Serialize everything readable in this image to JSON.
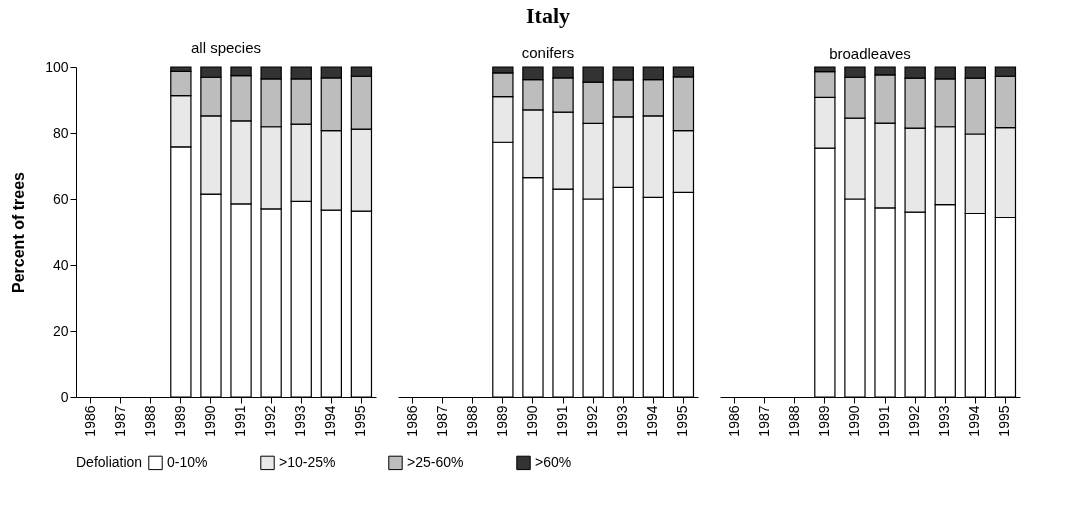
{
  "chart_data": [
    {
      "type": "bar",
      "subtitle": "all species",
      "ylabel": "Percent of trees",
      "legend_title": "Defoliation",
      "stacked": true,
      "legend": "bottom",
      "grid": false,
      "ylim": [
        0,
        100
      ],
      "yticks": [
        0,
        20,
        40,
        60,
        80,
        100
      ],
      "categories": [
        "1986",
        "1987",
        "1988",
        "1989",
        "1990",
        "1991",
        "1992",
        "1993",
        "1994",
        "1995"
      ],
      "series": [
        {
          "name": "0-10%",
          "color": "#ffffff",
          "values": [
            null,
            null,
            null,
            75.8,
            61.5,
            58.5,
            57,
            59.3,
            56.6,
            56.3
          ]
        },
        {
          "name": ">10-25%",
          "color": "#e8e8e8",
          "values": [
            null,
            null,
            null,
            15.5,
            23.7,
            25.2,
            24.9,
            23.4,
            24.1,
            24.9
          ]
        },
        {
          "name": ">25-60%",
          "color": "#bdbdbd",
          "values": [
            null,
            null,
            null,
            7.4,
            11.7,
            13.7,
            14.5,
            13.7,
            16,
            16
          ]
        },
        {
          "name": ">60%",
          "color": "#333333",
          "values": [
            null,
            null,
            null,
            1.3,
            3.1,
            2.6,
            3.6,
            3.6,
            3.3,
            2.8
          ]
        }
      ]
    },
    {
      "type": "bar",
      "title": "Italy",
      "subtitle": "conifers",
      "stacked": true,
      "tick_labels": "x",
      "ylim": [
        0,
        100
      ],
      "categories": [
        "1986",
        "1987",
        "1988",
        "1989",
        "1990",
        "1991",
        "1992",
        "1993",
        "1994",
        "1995"
      ],
      "series": [
        {
          "name": "0-10%",
          "color": "#ffffff",
          "values": [
            null,
            null,
            null,
            77.2,
            66.5,
            63,
            60,
            63.5,
            60.5,
            62
          ]
        },
        {
          "name": ">10-25%",
          "color": "#e8e8e8",
          "values": [
            null,
            null,
            null,
            13.8,
            20.5,
            23.3,
            22.9,
            21.4,
            24.7,
            18.7
          ]
        },
        {
          "name": ">25-60%",
          "color": "#bdbdbd",
          "values": [
            null,
            null,
            null,
            7.2,
            9.2,
            10.4,
            12.5,
            11.2,
            11,
            16.3
          ]
        },
        {
          "name": ">60%",
          "color": "#333333",
          "values": [
            null,
            null,
            null,
            1.8,
            3.8,
            3.3,
            4.6,
            3.9,
            3.8,
            3
          ]
        }
      ]
    },
    {
      "type": "bar",
      "subtitle": "broadleaves",
      "stacked": true,
      "tick_labels": "x",
      "ylim": [
        0,
        100
      ],
      "categories": [
        "1986",
        "1987",
        "1988",
        "1989",
        "1990",
        "1991",
        "1992",
        "1993",
        "1994",
        "1995"
      ],
      "series": [
        {
          "name": "0-10%",
          "color": "#ffffff",
          "values": [
            null,
            null,
            null,
            75.4,
            60,
            57.3,
            56,
            58.3,
            55.6,
            54.4
          ]
        },
        {
          "name": ">10-25%",
          "color": "#e8e8e8",
          "values": [
            null,
            null,
            null,
            15.4,
            24.5,
            25.7,
            25.5,
            23.6,
            24.1,
            27.2
          ]
        },
        {
          "name": ">25-60%",
          "color": "#bdbdbd",
          "values": [
            null,
            null,
            null,
            7.8,
            12.4,
            14.6,
            15.1,
            14.5,
            16.9,
            15.6
          ]
        },
        {
          "name": ">60%",
          "color": "#333333",
          "values": [
            null,
            null,
            null,
            1.4,
            3.1,
            2.4,
            3.4,
            3.6,
            3.4,
            2.8
          ]
        }
      ]
    }
  ]
}
